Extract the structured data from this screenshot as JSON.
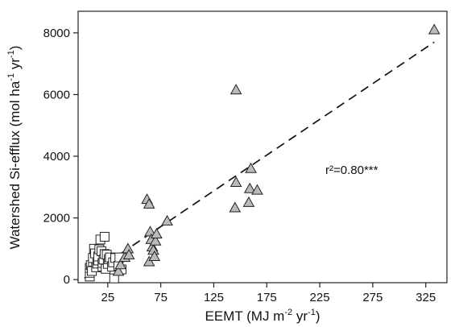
{
  "chart_data": {
    "type": "scatter",
    "xlabel": {
      "main": "EEMT (MJ m",
      "sup1": "-2",
      "mid": " yr",
      "sup2": "-1",
      "end": ")"
    },
    "ylabel": {
      "main": "Watershed Si-efflux (mol ha",
      "sup1": "-1",
      "mid": " yr",
      "sup2": "-1",
      "end": ")"
    },
    "xlim": [
      -3,
      345
    ],
    "ylim": [
      -100,
      8700
    ],
    "xticks": [
      25,
      75,
      125,
      175,
      225,
      275,
      325
    ],
    "yticks": [
      0,
      2000,
      4000,
      6000,
      8000
    ],
    "grid": false,
    "annotation": {
      "text": "r²=0.80***",
      "x": 241,
      "y": 3400
    },
    "fit_line": {
      "style": "dashed",
      "x": [
        3,
        333
      ],
      "y": [
        50,
        7700
      ]
    },
    "series": [
      {
        "marker": "square",
        "fill": "#ffffff",
        "points": [
          [
            8,
            100
          ],
          [
            8,
            220
          ],
          [
            8,
            380
          ],
          [
            9,
            470
          ],
          [
            10,
            280
          ],
          [
            11,
            580
          ],
          [
            11,
            700
          ],
          [
            12,
            1000
          ],
          [
            13,
            850
          ],
          [
            14,
            400
          ],
          [
            15,
            520
          ],
          [
            16,
            620
          ],
          [
            16,
            750
          ],
          [
            17,
            980
          ],
          [
            18,
            1300
          ],
          [
            19,
            920
          ],
          [
            20,
            420
          ],
          [
            20,
            540
          ],
          [
            21,
            650
          ],
          [
            22,
            1390
          ],
          [
            22,
            830
          ],
          [
            23,
            350
          ],
          [
            24,
            810
          ],
          [
            25,
            510
          ],
          [
            26,
            660
          ],
          [
            27,
            720
          ],
          [
            29,
            420
          ],
          [
            30,
            560
          ],
          [
            31,
            40
          ],
          [
            32,
            700
          ],
          [
            35,
            450
          ],
          [
            36,
            720
          ],
          [
            38,
            330
          ]
        ]
      },
      {
        "marker": "triangle",
        "fill": "#bbbbbb",
        "points": [
          [
            35,
            270
          ],
          [
            37,
            480
          ],
          [
            41,
            720
          ],
          [
            44,
            1000
          ],
          [
            45,
            800
          ],
          [
            62,
            2600
          ],
          [
            64,
            2450
          ],
          [
            64,
            580
          ],
          [
            65,
            1550
          ],
          [
            66,
            1300
          ],
          [
            67,
            1060
          ],
          [
            68,
            950
          ],
          [
            69,
            750
          ],
          [
            70,
            1250
          ],
          [
            71,
            1480
          ],
          [
            81,
            1900
          ],
          [
            145,
            2330
          ],
          [
            146,
            3150
          ],
          [
            146,
            6150
          ],
          [
            158,
            2500
          ],
          [
            159,
            2950
          ],
          [
            160,
            3600
          ],
          [
            166,
            2900
          ],
          [
            333,
            8100
          ]
        ]
      }
    ]
  }
}
